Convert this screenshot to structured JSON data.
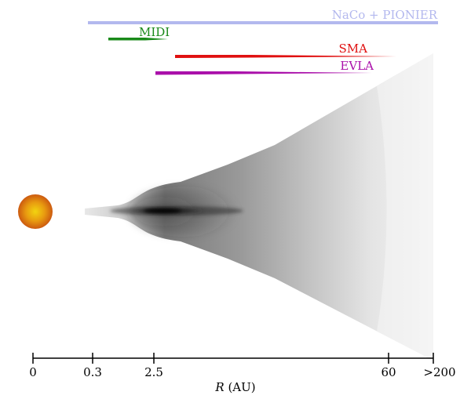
{
  "instruments": [
    {
      "name": "NaCo + PIONIER",
      "color": "#b3b8ee"
    },
    {
      "name": "MIDI",
      "color": "#1a8a1a"
    },
    {
      "name": "SMA",
      "color": "#e01010"
    },
    {
      "name": "EVLA",
      "color": "#aa10aa"
    }
  ],
  "axis": {
    "ticks": [
      "0",
      "0.3",
      "2.5",
      "60",
      ">200"
    ],
    "label_symbol": "R",
    "label_unit": " (AU)"
  },
  "colors": {
    "star_core": "#f4d010",
    "star_edge": "#d46010",
    "disk_dark": "#000000",
    "disk_light": "#f0f0f0"
  }
}
